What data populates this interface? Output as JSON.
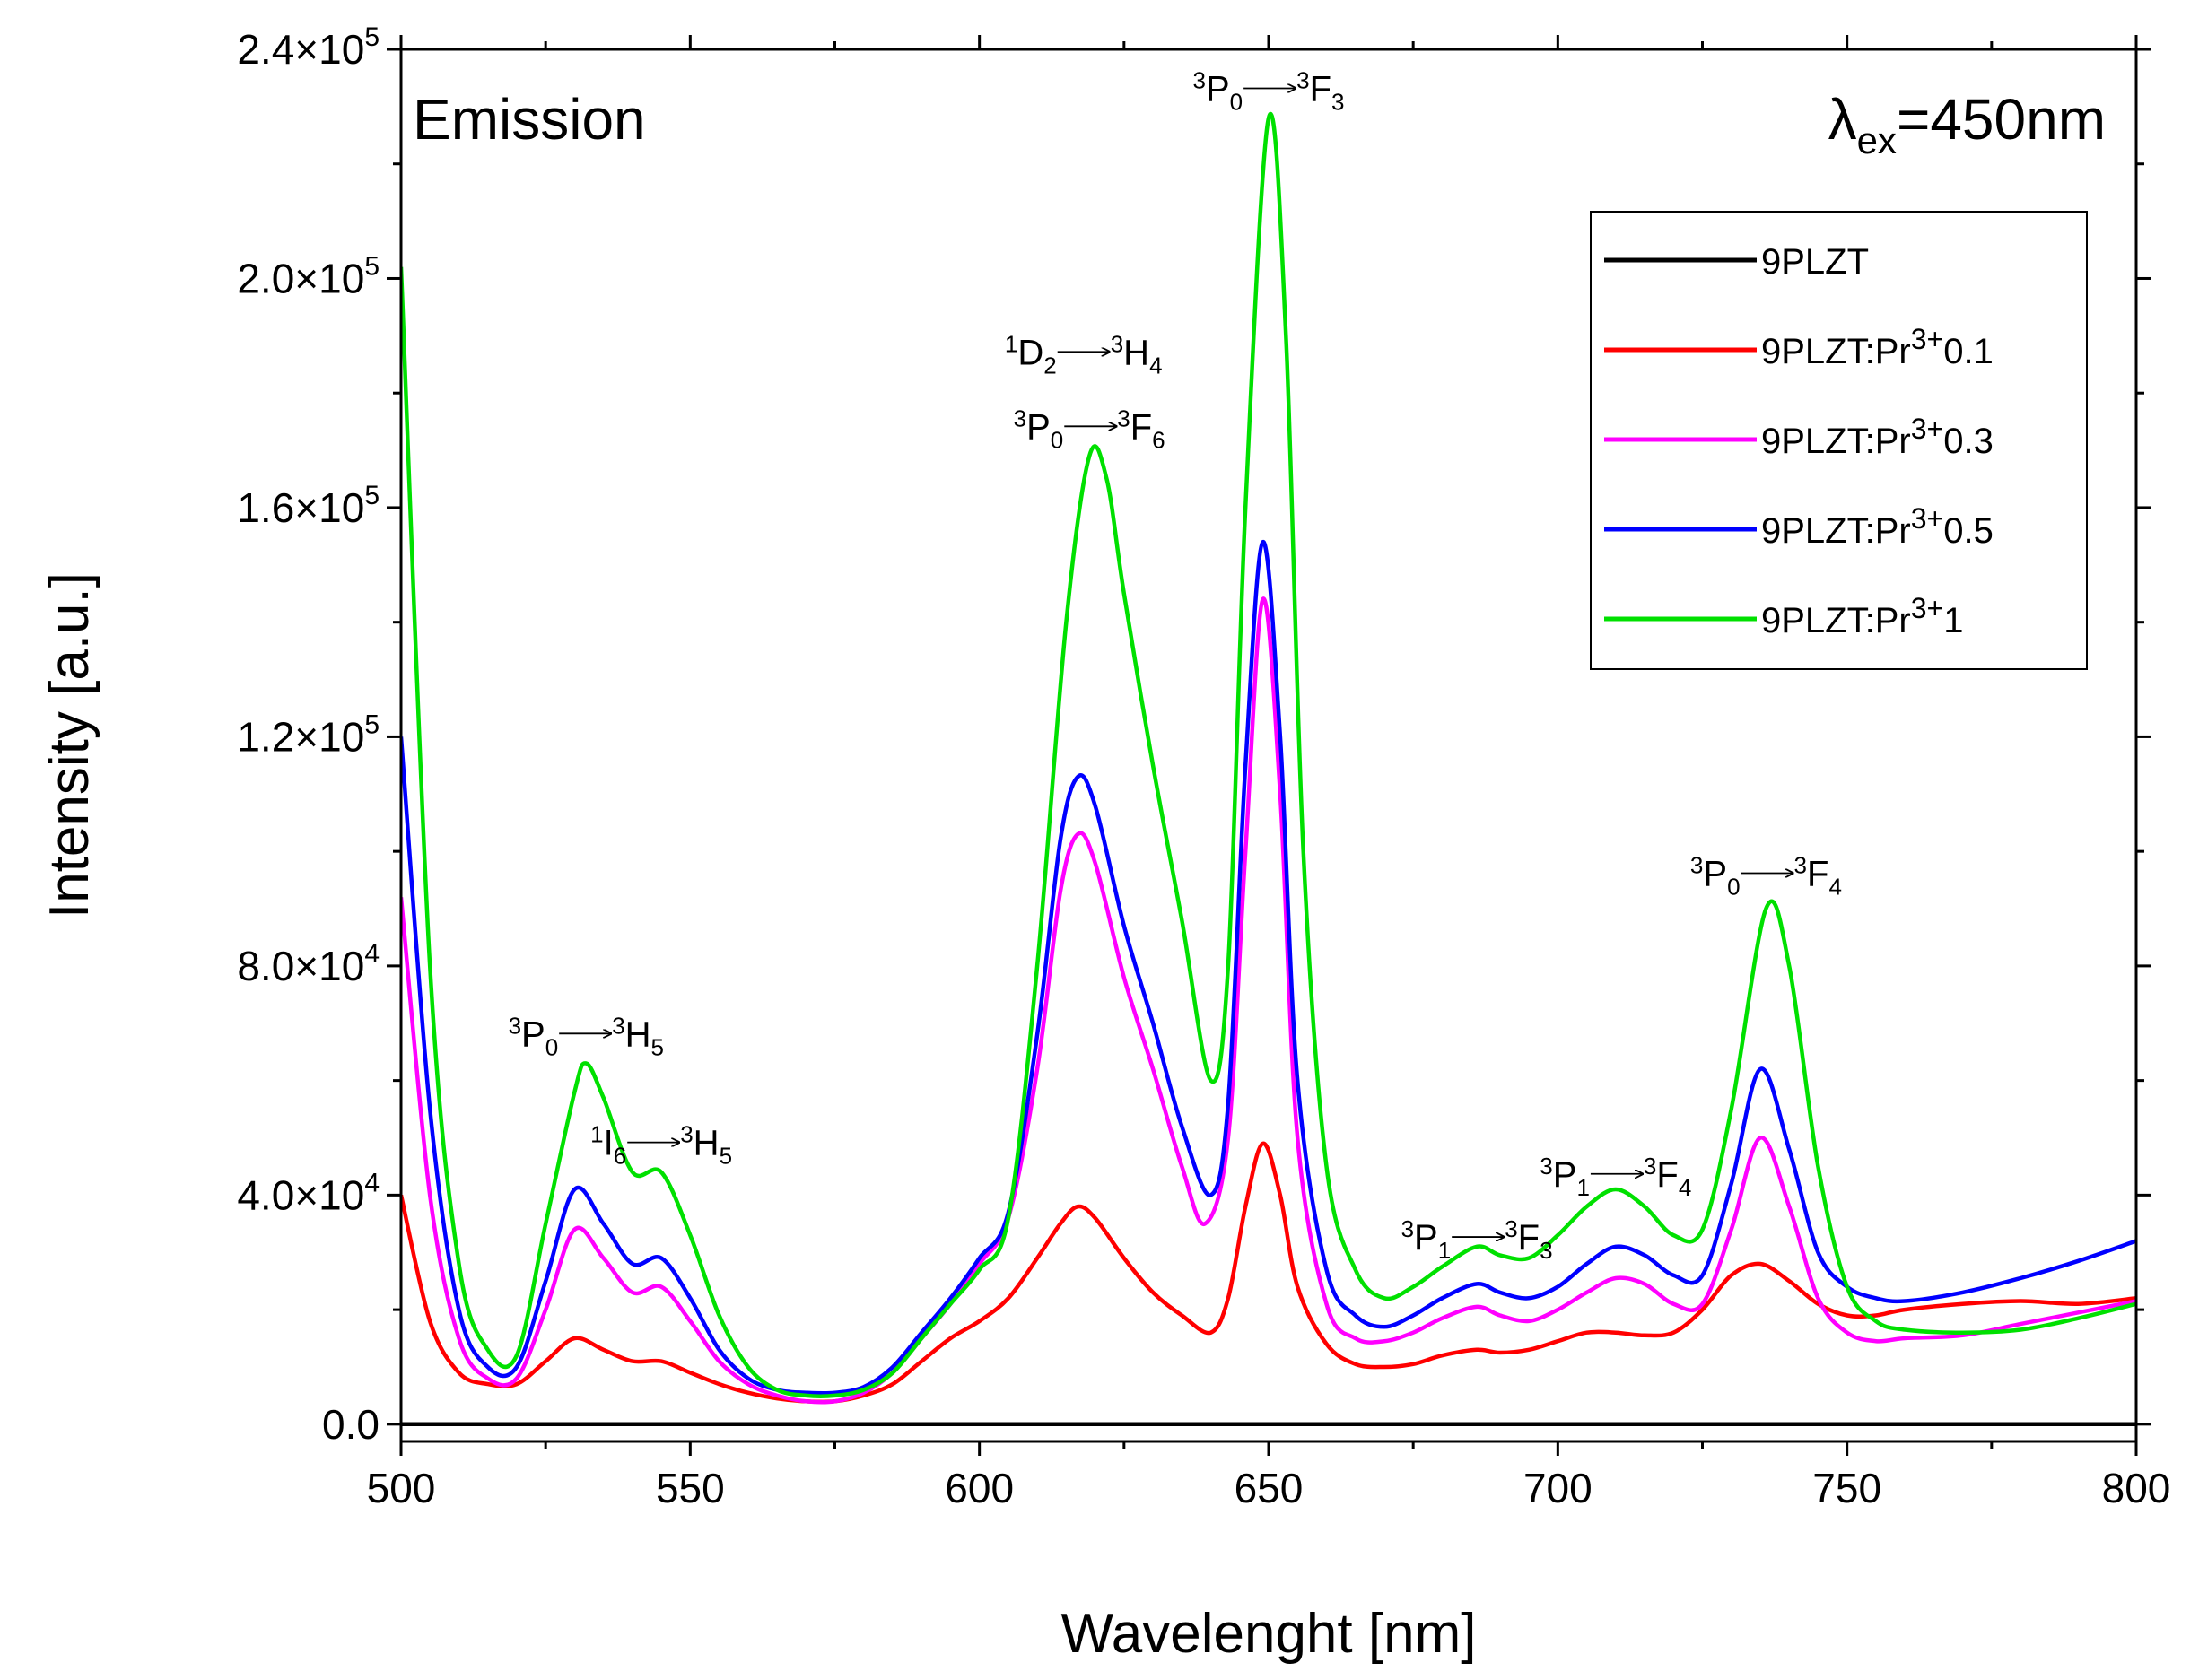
{
  "chart_data": {
    "type": "line",
    "xlabel": "Wavelenght [nm]",
    "ylabel": "Intensity [a.u.]",
    "xlim": [
      500,
      800
    ],
    "ylim": [
      -3000,
      240000
    ],
    "x_ticks": [
      500,
      550,
      600,
      650,
      700,
      750,
      800
    ],
    "x_tick_labels": [
      "500",
      "550",
      "600",
      "650",
      "700",
      "750",
      "800"
    ],
    "y_ticks": [
      0,
      40000,
      80000,
      120000,
      160000,
      200000,
      240000
    ],
    "y_tick_labels": [
      {
        "mantissa": "0.0",
        "exp": ""
      },
      {
        "mantissa": "4.0×10",
        "exp": "4"
      },
      {
        "mantissa": "8.0×10",
        "exp": "4"
      },
      {
        "mantissa": "1.2×10",
        "exp": "5"
      },
      {
        "mantissa": "1.6×10",
        "exp": "5"
      },
      {
        "mantissa": "2.0×10",
        "exp": "5"
      },
      {
        "mantissa": "2.4×10",
        "exp": "5"
      }
    ],
    "grid": false,
    "legend_position": "top-right",
    "corner_left": "Emission",
    "corner_right": {
      "lambda": "λ",
      "sub": "ex",
      "rest": "=450nm"
    },
    "series": [
      {
        "name": "9PLZT",
        "legend_base": "9PLZT",
        "legend_sup": "",
        "legend_suffix": "",
        "color": "#000000",
        "x": [
          500,
          800
        ],
        "y": [
          0,
          0
        ]
      },
      {
        "name": "9PLZT:Pr3+0.1",
        "legend_base": "9PLZT:Pr",
        "legend_sup": "3+",
        "legend_suffix": "0.1",
        "color": "#ff0000",
        "x": [
          500,
          505,
          510,
          515,
          520,
          525,
          530,
          535,
          540,
          545,
          550,
          555,
          560,
          565,
          570,
          575,
          580,
          585,
          590,
          595,
          600,
          605,
          610,
          614,
          617,
          620,
          625,
          630,
          635,
          640,
          643,
          646,
          649,
          652,
          655,
          660,
          665,
          670,
          675,
          680,
          686,
          690,
          695,
          700,
          705,
          710,
          715,
          720,
          725,
          730,
          735,
          740,
          745,
          750,
          755,
          760,
          770,
          780,
          790,
          800
        ],
        "y": [
          40000,
          18000,
          9000,
          7000,
          7000,
          11000,
          15000,
          13000,
          11000,
          11000,
          9000,
          7000,
          5500,
          4500,
          4000,
          4000,
          5000,
          7000,
          11000,
          15000,
          18000,
          22000,
          29000,
          35000,
          38000,
          36000,
          29000,
          23000,
          19000,
          16000,
          22000,
          38000,
          49000,
          40000,
          24000,
          14000,
          10500,
          10000,
          10500,
          12000,
          13000,
          12500,
          13000,
          14500,
          16000,
          16000,
          15500,
          16000,
          20000,
          26000,
          28000,
          25000,
          21000,
          19000,
          19000,
          20000,
          21000,
          21500,
          21000,
          22000
        ]
      },
      {
        "name": "9PLZT:Pr3+0.3",
        "legend_base": "9PLZT:Pr",
        "legend_sup": "3+",
        "legend_suffix": "0.3",
        "color": "#ff00ff",
        "x": [
          500,
          505,
          510,
          515,
          520,
          525,
          530,
          535,
          540,
          545,
          550,
          555,
          560,
          565,
          570,
          575,
          580,
          585,
          590,
          595,
          600,
          605,
          610,
          614,
          617,
          620,
          625,
          630,
          635,
          639,
          643,
          646,
          649,
          652,
          655,
          660,
          665,
          670,
          675,
          680,
          686,
          690,
          695,
          700,
          705,
          710,
          715,
          720,
          725,
          730,
          735,
          740,
          745,
          750,
          755,
          760,
          770,
          780,
          790,
          800
        ],
        "y": [
          92000,
          40000,
          15000,
          8000,
          8000,
          20000,
          34000,
          29000,
          23000,
          24000,
          18000,
          11000,
          7000,
          5000,
          4000,
          4000,
          5500,
          9000,
          15000,
          21000,
          28000,
          36000,
          62000,
          93000,
          103000,
          98000,
          78000,
          62000,
          45000,
          35000,
          50000,
          100000,
          144000,
          110000,
          50000,
          21000,
          15000,
          14500,
          16000,
          18500,
          20500,
          19000,
          18000,
          20000,
          23000,
          25500,
          24500,
          21000,
          21000,
          34000,
          50000,
          38000,
          22000,
          16000,
          14500,
          15000,
          15500,
          17500,
          19500,
          21500
        ]
      },
      {
        "name": "9PLZT:Pr3+0.5",
        "legend_base": "9PLZT:Pr",
        "legend_sup": "3+",
        "legend_suffix": "0.5",
        "color": "#0000ff",
        "x": [
          500,
          505,
          510,
          515,
          520,
          525,
          530,
          535,
          540,
          545,
          550,
          555,
          560,
          565,
          570,
          575,
          580,
          585,
          590,
          595,
          600,
          605,
          610,
          614,
          617,
          620,
          625,
          630,
          635,
          640,
          643,
          646,
          649,
          652,
          655,
          660,
          665,
          670,
          675,
          680,
          686,
          690,
          695,
          700,
          705,
          710,
          715,
          720,
          725,
          730,
          735,
          740,
          745,
          750,
          755,
          760,
          770,
          780,
          790,
          800
        ],
        "y": [
          120000,
          55000,
          20000,
          10000,
          10000,
          25000,
          41000,
          35000,
          28000,
          29000,
          22000,
          13000,
          8000,
          6000,
          5500,
          5500,
          6500,
          10000,
          16000,
          22000,
          29000,
          37000,
          68000,
          102000,
          113000,
          108000,
          87000,
          70000,
          52000,
          40000,
          56000,
          115000,
          154000,
          120000,
          60000,
          27000,
          19000,
          17000,
          19000,
          22000,
          24500,
          23000,
          22000,
          24000,
          28000,
          31000,
          29500,
          26000,
          26000,
          42000,
          62000,
          48000,
          30000,
          24000,
          22000,
          21500,
          23000,
          25500,
          28500,
          32000
        ]
      },
      {
        "name": "9PLZT:Pr3+1",
        "legend_base": "9PLZT:Pr",
        "legend_sup": "3+",
        "legend_suffix": "1",
        "color": "#00e000",
        "x": [
          500,
          505,
          510,
          515,
          520,
          525,
          530,
          532,
          535,
          540,
          545,
          550,
          555,
          560,
          565,
          570,
          575,
          580,
          585,
          590,
          595,
          600,
          605,
          610,
          615,
          619,
          622,
          625,
          630,
          635,
          640,
          643,
          646,
          650,
          653,
          656,
          660,
          665,
          670,
          675,
          680,
          686,
          690,
          695,
          700,
          705,
          710,
          715,
          720,
          725,
          730,
          736,
          740,
          745,
          750,
          755,
          760,
          770,
          780,
          790,
          800
        ],
        "y": [
          202000,
          80000,
          28000,
          13000,
          12000,
          35000,
          58000,
          63000,
          57000,
          44000,
          44000,
          33000,
          19000,
          10000,
          6000,
          5000,
          5000,
          6000,
          9000,
          15000,
          21000,
          27000,
          36000,
          80000,
          140000,
          169000,
          165000,
          145000,
          115000,
          88000,
          60000,
          80000,
          160000,
          228000,
          190000,
          100000,
          45000,
          27000,
          22000,
          24000,
          27500,
          31000,
          29500,
          29000,
          33000,
          38000,
          41000,
          38000,
          33000,
          34000,
          55000,
          90000,
          80000,
          45000,
          24000,
          18000,
          16500,
          16000,
          16500,
          18500,
          21000
        ]
      }
    ],
    "annotations": [
      {
        "x": 532,
        "y": 66000,
        "parts": [
          [
            "sup",
            "3"
          ],
          [
            "n",
            "P"
          ],
          [
            "sub",
            "0"
          ],
          [
            "arrow",
            ""
          ],
          [
            "sup",
            "3"
          ],
          [
            "n",
            "H"
          ],
          [
            "sub",
            "5"
          ]
        ]
      },
      {
        "x": 545,
        "y": 47000,
        "parts": [
          [
            "sup",
            "1"
          ],
          [
            "n",
            "I"
          ],
          [
            "sub",
            "6"
          ],
          [
            "arrow",
            ""
          ],
          [
            "sup",
            "3"
          ],
          [
            "n",
            "H"
          ],
          [
            "sub",
            "5"
          ]
        ]
      },
      {
        "x": 618,
        "y": 185000,
        "parts": [
          [
            "sup",
            "1"
          ],
          [
            "n",
            "D"
          ],
          [
            "sub",
            "2"
          ],
          [
            "arrow",
            ""
          ],
          [
            "sup",
            "3"
          ],
          [
            "n",
            "H"
          ],
          [
            "sub",
            "4"
          ]
        ]
      },
      {
        "x": 619,
        "y": 172000,
        "parts": [
          [
            "sup",
            "3"
          ],
          [
            "n",
            "P"
          ],
          [
            "sub",
            "0"
          ],
          [
            "arrow",
            ""
          ],
          [
            "sup",
            "3"
          ],
          [
            "n",
            "F"
          ],
          [
            "sub",
            "6"
          ]
        ]
      },
      {
        "x": 650,
        "y": 231000,
        "parts": [
          [
            "sup",
            "3"
          ],
          [
            "n",
            "P"
          ],
          [
            "sub",
            "0"
          ],
          [
            "arrow",
            ""
          ],
          [
            "sup",
            "3"
          ],
          [
            "n",
            "F"
          ],
          [
            "sub",
            "3"
          ]
        ]
      },
      {
        "x": 686,
        "y": 30500,
        "parts": [
          [
            "sup",
            "3"
          ],
          [
            "n",
            "P"
          ],
          [
            "sub",
            "1"
          ],
          [
            "arrow",
            ""
          ],
          [
            "sup",
            "3"
          ],
          [
            "n",
            "F"
          ],
          [
            "sub",
            "3"
          ]
        ]
      },
      {
        "x": 710,
        "y": 41500,
        "parts": [
          [
            "sup",
            "3"
          ],
          [
            "n",
            "P"
          ],
          [
            "sub",
            "1"
          ],
          [
            "arrow",
            ""
          ],
          [
            "sup",
            "3"
          ],
          [
            "n",
            "F"
          ],
          [
            "sub",
            "4"
          ]
        ]
      },
      {
        "x": 736,
        "y": 94000,
        "parts": [
          [
            "sup",
            "3"
          ],
          [
            "n",
            "P"
          ],
          [
            "sub",
            "0"
          ],
          [
            "arrow",
            ""
          ],
          [
            "sup",
            "3"
          ],
          [
            "n",
            "F"
          ],
          [
            "sub",
            "4"
          ]
        ]
      }
    ]
  }
}
